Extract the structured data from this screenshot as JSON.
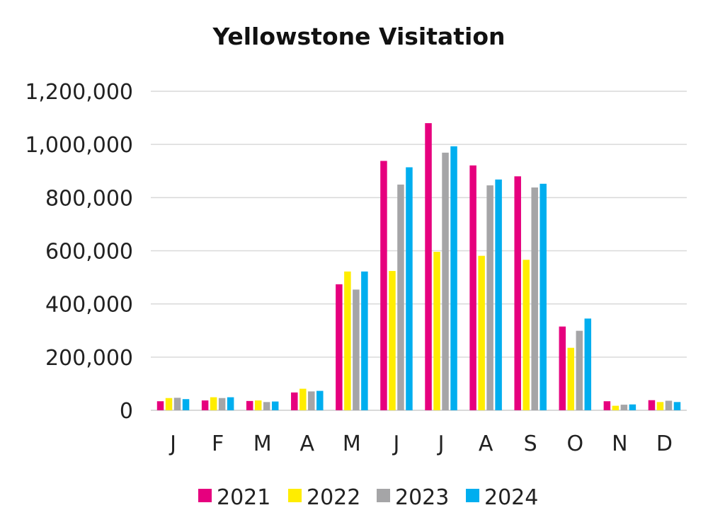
{
  "chart_data": {
    "type": "bar",
    "title": "Yellowstone Visitation",
    "xlabel": "",
    "ylabel": "",
    "ylim": [
      0,
      1200000
    ],
    "yticks": [
      0,
      200000,
      400000,
      600000,
      800000,
      1000000,
      1200000
    ],
    "ytick_labels": [
      "0",
      "200,000",
      "400,000",
      "600,000",
      "800,000",
      "1,000,000",
      "1,200,000"
    ],
    "categories": [
      "J",
      "F",
      "M",
      "A",
      "M",
      "J",
      "J",
      "A",
      "S",
      "O",
      "N",
      "D"
    ],
    "grid": true,
    "legend_position": "bottom",
    "series": [
      {
        "name": "2021",
        "color": "#e6007e",
        "values": [
          34000,
          37000,
          35000,
          67000,
          474000,
          938000,
          1080000,
          921000,
          880000,
          315000,
          34000,
          38000
        ]
      },
      {
        "name": "2022",
        "color": "#ffed00",
        "values": [
          46000,
          49000,
          37000,
          81000,
          522000,
          524000,
          596000,
          581000,
          566000,
          235000,
          17000,
          31000
        ]
      },
      {
        "name": "2023",
        "color": "#a5a5a7",
        "values": [
          47000,
          46000,
          31000,
          71000,
          454000,
          849000,
          969000,
          846000,
          838000,
          299000,
          21000,
          36000
        ]
      },
      {
        "name": "2024",
        "color": "#00aeef",
        "values": [
          42000,
          49000,
          33000,
          73000,
          522000,
          914000,
          993000,
          868000,
          852000,
          345000,
          22000,
          31000
        ]
      }
    ]
  }
}
